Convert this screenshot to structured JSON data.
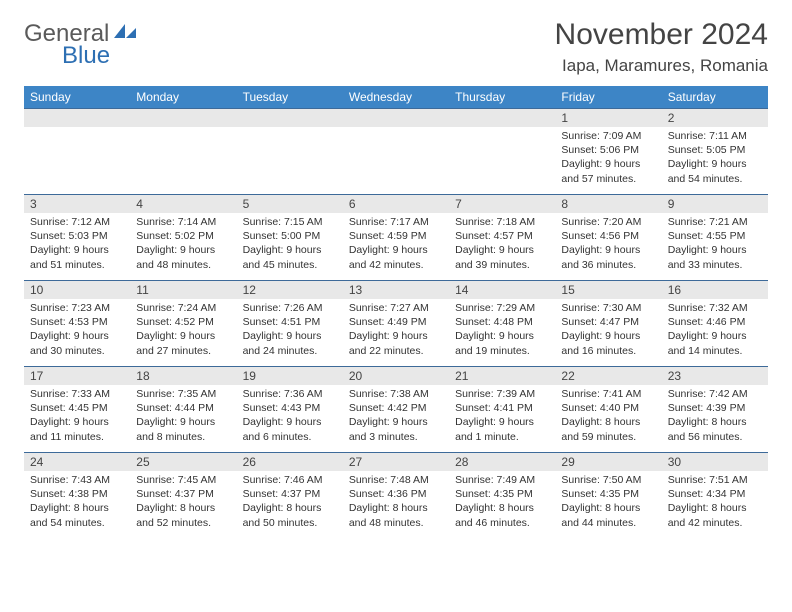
{
  "logo": {
    "general": "General",
    "blue": "Blue"
  },
  "header": {
    "month_title": "November 2024",
    "location": "Iapa, Maramures, Romania"
  },
  "colors": {
    "header_bg": "#3d85c6",
    "header_fg": "#ffffff",
    "row_border": "#3d6a99",
    "daynum_bg": "#e8e8e8",
    "logo_blue": "#2d6fb3",
    "logo_gray": "#5a5a5a"
  },
  "weekdays": [
    "Sunday",
    "Monday",
    "Tuesday",
    "Wednesday",
    "Thursday",
    "Friday",
    "Saturday"
  ],
  "weeks": [
    [
      {
        "blank": true
      },
      {
        "blank": true
      },
      {
        "blank": true
      },
      {
        "blank": true
      },
      {
        "blank": true
      },
      {
        "day": "1",
        "sunrise": "Sunrise: 7:09 AM",
        "sunset": "Sunset: 5:06 PM",
        "daylight1": "Daylight: 9 hours",
        "daylight2": "and 57 minutes."
      },
      {
        "day": "2",
        "sunrise": "Sunrise: 7:11 AM",
        "sunset": "Sunset: 5:05 PM",
        "daylight1": "Daylight: 9 hours",
        "daylight2": "and 54 minutes."
      }
    ],
    [
      {
        "day": "3",
        "sunrise": "Sunrise: 7:12 AM",
        "sunset": "Sunset: 5:03 PM",
        "daylight1": "Daylight: 9 hours",
        "daylight2": "and 51 minutes."
      },
      {
        "day": "4",
        "sunrise": "Sunrise: 7:14 AM",
        "sunset": "Sunset: 5:02 PM",
        "daylight1": "Daylight: 9 hours",
        "daylight2": "and 48 minutes."
      },
      {
        "day": "5",
        "sunrise": "Sunrise: 7:15 AM",
        "sunset": "Sunset: 5:00 PM",
        "daylight1": "Daylight: 9 hours",
        "daylight2": "and 45 minutes."
      },
      {
        "day": "6",
        "sunrise": "Sunrise: 7:17 AM",
        "sunset": "Sunset: 4:59 PM",
        "daylight1": "Daylight: 9 hours",
        "daylight2": "and 42 minutes."
      },
      {
        "day": "7",
        "sunrise": "Sunrise: 7:18 AM",
        "sunset": "Sunset: 4:57 PM",
        "daylight1": "Daylight: 9 hours",
        "daylight2": "and 39 minutes."
      },
      {
        "day": "8",
        "sunrise": "Sunrise: 7:20 AM",
        "sunset": "Sunset: 4:56 PM",
        "daylight1": "Daylight: 9 hours",
        "daylight2": "and 36 minutes."
      },
      {
        "day": "9",
        "sunrise": "Sunrise: 7:21 AM",
        "sunset": "Sunset: 4:55 PM",
        "daylight1": "Daylight: 9 hours",
        "daylight2": "and 33 minutes."
      }
    ],
    [
      {
        "day": "10",
        "sunrise": "Sunrise: 7:23 AM",
        "sunset": "Sunset: 4:53 PM",
        "daylight1": "Daylight: 9 hours",
        "daylight2": "and 30 minutes."
      },
      {
        "day": "11",
        "sunrise": "Sunrise: 7:24 AM",
        "sunset": "Sunset: 4:52 PM",
        "daylight1": "Daylight: 9 hours",
        "daylight2": "and 27 minutes."
      },
      {
        "day": "12",
        "sunrise": "Sunrise: 7:26 AM",
        "sunset": "Sunset: 4:51 PM",
        "daylight1": "Daylight: 9 hours",
        "daylight2": "and 24 minutes."
      },
      {
        "day": "13",
        "sunrise": "Sunrise: 7:27 AM",
        "sunset": "Sunset: 4:49 PM",
        "daylight1": "Daylight: 9 hours",
        "daylight2": "and 22 minutes."
      },
      {
        "day": "14",
        "sunrise": "Sunrise: 7:29 AM",
        "sunset": "Sunset: 4:48 PM",
        "daylight1": "Daylight: 9 hours",
        "daylight2": "and 19 minutes."
      },
      {
        "day": "15",
        "sunrise": "Sunrise: 7:30 AM",
        "sunset": "Sunset: 4:47 PM",
        "daylight1": "Daylight: 9 hours",
        "daylight2": "and 16 minutes."
      },
      {
        "day": "16",
        "sunrise": "Sunrise: 7:32 AM",
        "sunset": "Sunset: 4:46 PM",
        "daylight1": "Daylight: 9 hours",
        "daylight2": "and 14 minutes."
      }
    ],
    [
      {
        "day": "17",
        "sunrise": "Sunrise: 7:33 AM",
        "sunset": "Sunset: 4:45 PM",
        "daylight1": "Daylight: 9 hours",
        "daylight2": "and 11 minutes."
      },
      {
        "day": "18",
        "sunrise": "Sunrise: 7:35 AM",
        "sunset": "Sunset: 4:44 PM",
        "daylight1": "Daylight: 9 hours",
        "daylight2": "and 8 minutes."
      },
      {
        "day": "19",
        "sunrise": "Sunrise: 7:36 AM",
        "sunset": "Sunset: 4:43 PM",
        "daylight1": "Daylight: 9 hours",
        "daylight2": "and 6 minutes."
      },
      {
        "day": "20",
        "sunrise": "Sunrise: 7:38 AM",
        "sunset": "Sunset: 4:42 PM",
        "daylight1": "Daylight: 9 hours",
        "daylight2": "and 3 minutes."
      },
      {
        "day": "21",
        "sunrise": "Sunrise: 7:39 AM",
        "sunset": "Sunset: 4:41 PM",
        "daylight1": "Daylight: 9 hours",
        "daylight2": "and 1 minute."
      },
      {
        "day": "22",
        "sunrise": "Sunrise: 7:41 AM",
        "sunset": "Sunset: 4:40 PM",
        "daylight1": "Daylight: 8 hours",
        "daylight2": "and 59 minutes."
      },
      {
        "day": "23",
        "sunrise": "Sunrise: 7:42 AM",
        "sunset": "Sunset: 4:39 PM",
        "daylight1": "Daylight: 8 hours",
        "daylight2": "and 56 minutes."
      }
    ],
    [
      {
        "day": "24",
        "sunrise": "Sunrise: 7:43 AM",
        "sunset": "Sunset: 4:38 PM",
        "daylight1": "Daylight: 8 hours",
        "daylight2": "and 54 minutes."
      },
      {
        "day": "25",
        "sunrise": "Sunrise: 7:45 AM",
        "sunset": "Sunset: 4:37 PM",
        "daylight1": "Daylight: 8 hours",
        "daylight2": "and 52 minutes."
      },
      {
        "day": "26",
        "sunrise": "Sunrise: 7:46 AM",
        "sunset": "Sunset: 4:37 PM",
        "daylight1": "Daylight: 8 hours",
        "daylight2": "and 50 minutes."
      },
      {
        "day": "27",
        "sunrise": "Sunrise: 7:48 AM",
        "sunset": "Sunset: 4:36 PM",
        "daylight1": "Daylight: 8 hours",
        "daylight2": "and 48 minutes."
      },
      {
        "day": "28",
        "sunrise": "Sunrise: 7:49 AM",
        "sunset": "Sunset: 4:35 PM",
        "daylight1": "Daylight: 8 hours",
        "daylight2": "and 46 minutes."
      },
      {
        "day": "29",
        "sunrise": "Sunrise: 7:50 AM",
        "sunset": "Sunset: 4:35 PM",
        "daylight1": "Daylight: 8 hours",
        "daylight2": "and 44 minutes."
      },
      {
        "day": "30",
        "sunrise": "Sunrise: 7:51 AM",
        "sunset": "Sunset: 4:34 PM",
        "daylight1": "Daylight: 8 hours",
        "daylight2": "and 42 minutes."
      }
    ]
  ]
}
